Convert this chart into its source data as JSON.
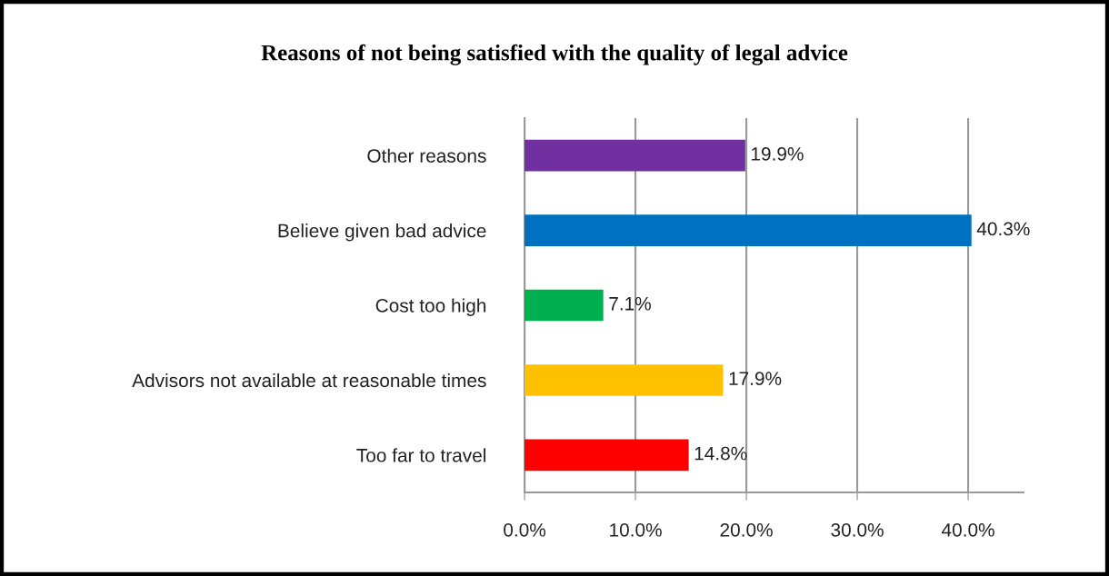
{
  "chart_data": {
    "type": "bar",
    "orientation": "horizontal",
    "title": "Reasons of not being satisfied with the quality of legal advice",
    "categories": [
      "Other reasons",
      "Believe given bad advice",
      "Cost too high",
      "Advisors not available at reasonable times",
      "Too far to travel"
    ],
    "values": [
      19.9,
      40.3,
      7.1,
      17.9,
      14.8
    ],
    "colors": [
      "#7030a0",
      "#0070c0",
      "#00b050",
      "#ffc000",
      "#ff0000"
    ],
    "value_labels": [
      "19.9%",
      "40.3%",
      "7.1%",
      "17.9%",
      "14.8%"
    ],
    "xlim": [
      0,
      45
    ],
    "xticks": [
      {
        "value": 0,
        "label": "0.0%"
      },
      {
        "value": 10,
        "label": "10.0%"
      },
      {
        "value": 20,
        "label": "20.0%"
      },
      {
        "value": 30,
        "label": "30.0%"
      },
      {
        "value": 40,
        "label": "40.0%"
      }
    ],
    "grid": "x",
    "legend": false
  }
}
